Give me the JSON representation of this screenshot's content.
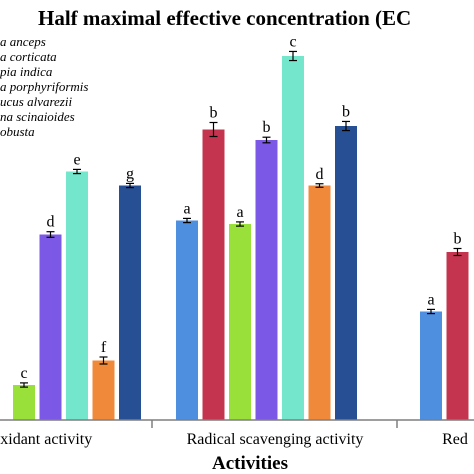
{
  "chart_data": {
    "type": "bar",
    "title": "Half maximal effective concentration (EC",
    "xlabel": "Activities",
    "ylabel": "",
    "ylim": [
      0,
      100
    ],
    "grid": false,
    "legend_position": "top-left",
    "categories": [
      "ioxidant activity",
      "Radical scavenging activity",
      "Red"
    ],
    "series": [
      {
        "name": "a anceps",
        "color": "#4f8fe0",
        "values": [
          null,
          57,
          31
        ],
        "errors": [
          null,
          0.6,
          0.6
        ],
        "letters": [
          "",
          "a",
          "a"
        ]
      },
      {
        "name": "a corticata",
        "color": "#c4344f",
        "values": [
          null,
          83,
          48
        ],
        "errors": [
          null,
          2.0,
          1.0
        ],
        "letters": [
          "",
          "b",
          "b"
        ]
      },
      {
        "name": "pia indica",
        "color": "#9ae03a",
        "values": [
          10,
          56,
          null
        ],
        "errors": [
          0.6,
          0.6,
          null
        ],
        "letters": [
          "c",
          "a",
          ""
        ]
      },
      {
        "name": "a porphyriformis",
        "color": "#7b58e6",
        "values": [
          53,
          80,
          null
        ],
        "errors": [
          0.8,
          0.8,
          null
        ],
        "letters": [
          "d",
          "b",
          ""
        ]
      },
      {
        "name": "ucus alvarezii",
        "color": "#74e6cc",
        "values": [
          71,
          104,
          null
        ],
        "errors": [
          0.6,
          1.3,
          null
        ],
        "letters": [
          "e",
          "c",
          ""
        ]
      },
      {
        "name": "na scinaioides",
        "color": "#f08a3a",
        "values": [
          17,
          67,
          null
        ],
        "errors": [
          1.0,
          0.5,
          null
        ],
        "letters": [
          "f",
          "d",
          ""
        ]
      },
      {
        "name": "obusta",
        "color": "#264f94",
        "values": [
          67,
          84,
          null
        ],
        "errors": [
          0.6,
          1.3,
          null
        ],
        "letters": [
          "g",
          "b",
          ""
        ]
      }
    ]
  },
  "colors": {
    "axis": "#7f7f7f",
    "text": "#000000"
  }
}
